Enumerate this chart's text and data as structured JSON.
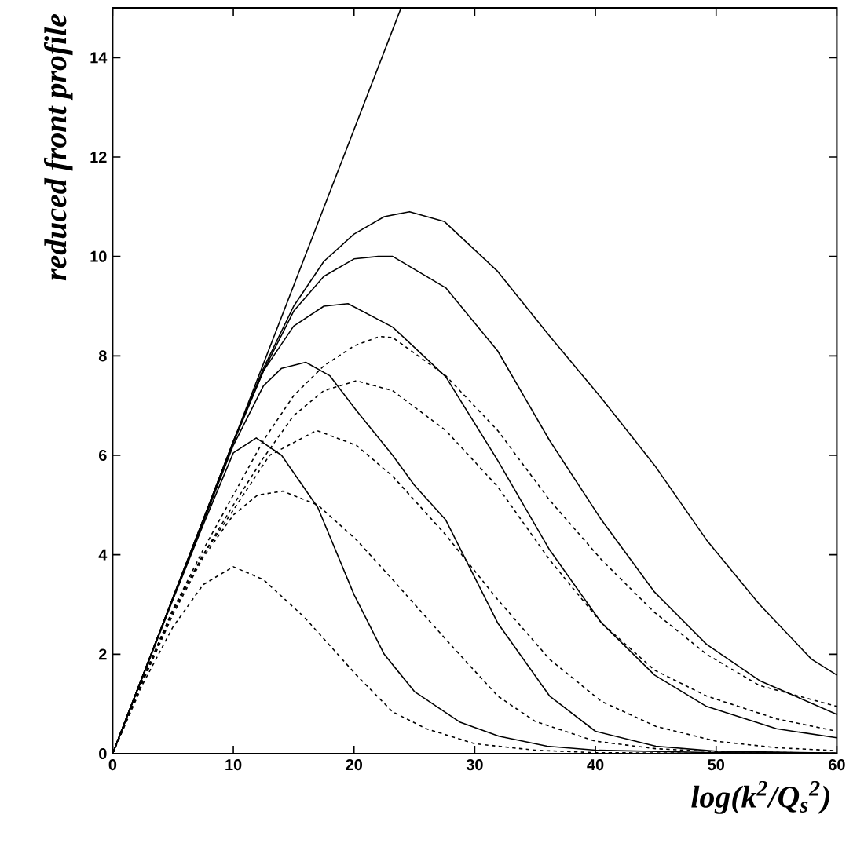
{
  "chart_data": {
    "type": "line",
    "xlabel": "log(k$^{2}$/Q$_{s}$$^{2}$)",
    "ylabel": "reduced front profile",
    "xlim": [
      0,
      60
    ],
    "ylim": [
      0,
      15
    ],
    "xticks": [
      0,
      10,
      20,
      30,
      40,
      50,
      60
    ],
    "yticks": [
      0,
      2,
      4,
      6,
      8,
      10,
      12,
      14
    ],
    "series": [
      {
        "color": "#000000",
        "line_style": "solid",
        "x": [
          0,
          23.9
        ],
        "values": [
          0,
          15
        ]
      },
      {
        "color": "#000000",
        "line_style": "solid",
        "x": [
          0,
          2.5,
          5,
          7.5,
          10,
          11.9,
          14,
          17,
          20,
          22.5,
          25,
          28.8,
          32,
          36,
          40,
          50,
          60
        ],
        "values": [
          0,
          1.55,
          3.1,
          4.6,
          6.05,
          6.35,
          6.0,
          4.95,
          3.2,
          2.0,
          1.25,
          0.63,
          0.35,
          0.15,
          0.07,
          0.02,
          0.01
        ]
      },
      {
        "color": "#000000",
        "line_style": "solid",
        "x": [
          0,
          2.5,
          5,
          7.5,
          10,
          12.5,
          14,
          16,
          18,
          20.2,
          23.2,
          25,
          27.6,
          31.9,
          36.2,
          40,
          45,
          50,
          60
        ],
        "values": [
          0,
          1.57,
          3.12,
          4.65,
          6.2,
          7.4,
          7.75,
          7.87,
          7.6,
          6.9,
          6.0,
          5.4,
          4.7,
          2.63,
          1.16,
          0.45,
          0.15,
          0.05,
          0.01
        ]
      },
      {
        "color": "#000000",
        "line_style": "solid",
        "x": [
          0,
          2.5,
          5,
          7.5,
          10,
          12.5,
          15,
          17.5,
          19.5,
          23.2,
          27.6,
          31.9,
          36.2,
          40.5,
          44.9,
          49.2,
          55,
          60
        ],
        "values": [
          0,
          1.57,
          3.13,
          4.68,
          6.25,
          7.7,
          8.6,
          9.0,
          9.05,
          8.58,
          7.58,
          5.9,
          4.1,
          2.63,
          1.58,
          0.95,
          0.5,
          0.32
        ]
      },
      {
        "color": "#000000",
        "line_style": "solid",
        "x": [
          0,
          2.5,
          5,
          7.5,
          10,
          12.5,
          15,
          17.5,
          20,
          22,
          23.2,
          27.6,
          31.9,
          36.2,
          40.5,
          44.9,
          49.2,
          53.6,
          60
        ],
        "values": [
          0,
          1.57,
          3.14,
          4.7,
          6.28,
          7.7,
          8.9,
          9.6,
          9.95,
          10.0,
          10.0,
          9.37,
          8.1,
          6.3,
          4.7,
          3.25,
          2.2,
          1.47,
          0.79
        ]
      },
      {
        "color": "#000000",
        "line_style": "solid",
        "x": [
          0,
          2.5,
          5,
          7.5,
          10,
          12.5,
          15,
          17.5,
          20,
          22.5,
          24.6,
          27.5,
          31.9,
          36.2,
          40.5,
          44.9,
          49.2,
          53.6,
          57.9,
          60
        ],
        "values": [
          0,
          1.57,
          3.14,
          4.7,
          6.28,
          7.75,
          9.0,
          9.9,
          10.45,
          10.8,
          10.9,
          10.7,
          9.7,
          8.4,
          7.15,
          5.8,
          4.3,
          3.0,
          1.9,
          1.58
        ]
      },
      {
        "color": "#000000",
        "line_style": "dashed",
        "x": [
          0,
          2.5,
          5,
          7.5,
          10,
          12.5,
          15.9,
          20.2,
          23.2,
          26,
          30,
          35,
          40,
          60
        ],
        "values": [
          0,
          1.4,
          2.55,
          3.4,
          3.76,
          3.5,
          2.74,
          1.58,
          0.84,
          0.5,
          0.2,
          0.07,
          0.02,
          0
        ]
      },
      {
        "color": "#000000",
        "line_style": "dashed",
        "x": [
          0,
          2.5,
          5,
          7.5,
          10,
          12,
          14.1,
          17,
          20.2,
          23.2,
          27.6,
          31.9,
          35,
          40,
          45,
          50,
          60
        ],
        "values": [
          0,
          1.45,
          2.8,
          3.95,
          4.8,
          5.2,
          5.28,
          5.0,
          4.3,
          3.5,
          2.3,
          1.16,
          0.65,
          0.25,
          0.1,
          0.04,
          0.01
        ]
      },
      {
        "color": "#000000",
        "line_style": "dashed",
        "x": [
          0,
          2.5,
          5,
          7.5,
          10,
          13,
          16.9,
          20.2,
          23.2,
          27.6,
          31.9,
          36.2,
          40.5,
          45,
          50,
          55,
          60
        ],
        "values": [
          0,
          1.48,
          2.85,
          4.0,
          4.9,
          6.0,
          6.5,
          6.2,
          5.58,
          4.4,
          3.1,
          1.9,
          1.05,
          0.55,
          0.25,
          0.12,
          0.06
        ]
      },
      {
        "color": "#000000",
        "line_style": "dashed",
        "x": [
          0,
          2.5,
          5,
          7.5,
          10,
          12.5,
          15,
          17.5,
          20.2,
          23.2,
          27.6,
          31.9,
          36.2,
          40.5,
          44.9,
          49.2,
          55,
          60
        ],
        "values": [
          0,
          1.5,
          2.9,
          4.0,
          5.0,
          5.95,
          6.8,
          7.3,
          7.5,
          7.3,
          6.5,
          5.37,
          3.9,
          2.63,
          1.68,
          1.16,
          0.7,
          0.45
        ]
      },
      {
        "color": "#000000",
        "line_style": "dashed",
        "x": [
          0,
          2.5,
          5,
          7.5,
          10,
          12.5,
          15,
          17.5,
          20,
          22.1,
          23.2,
          27.6,
          31.9,
          36.2,
          40.5,
          44.9,
          49.2,
          53.6,
          60
        ],
        "values": [
          0,
          1.5,
          2.9,
          4.1,
          5.2,
          6.3,
          7.2,
          7.8,
          8.2,
          8.39,
          8.37,
          7.6,
          6.5,
          5.1,
          3.9,
          2.84,
          2.0,
          1.37,
          0.95
        ]
      }
    ]
  }
}
